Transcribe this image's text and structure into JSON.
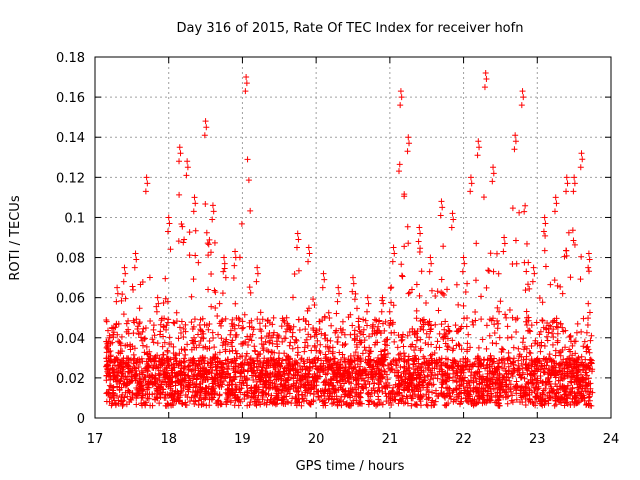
{
  "chart_data": {
    "type": "scatter",
    "title": "Day 316 of 2015, Rate Of TEC Index for receiver hofn",
    "xlabel": "GPS time / hours",
    "ylabel": "ROTI / TECUs",
    "xlim": [
      17,
      24
    ],
    "ylim": [
      0,
      0.18
    ],
    "xticks": [
      17,
      18,
      19,
      20,
      21,
      22,
      23,
      24
    ],
    "xtick_labels": [
      "17",
      "18",
      "19",
      "20",
      "21",
      "22",
      "23",
      "24"
    ],
    "yticks": [
      0,
      0.02,
      0.04,
      0.06,
      0.08,
      0.1,
      0.12,
      0.14,
      0.16,
      0.18
    ],
    "ytick_labels": [
      "0",
      "0.02",
      "0.04",
      "0.06",
      "0.08",
      "0.1",
      "0.12",
      "0.14",
      "0.16",
      "0.18"
    ],
    "grid": true,
    "marker": "+",
    "color": "#ff0000",
    "data_x_range": [
      17.15,
      23.75
    ],
    "series": [
      {
        "name": "ROTI",
        "x": [
          17.2,
          17.3,
          17.4,
          17.55,
          17.7,
          17.85,
          18.0,
          18.15,
          18.25,
          18.35,
          18.5,
          18.6,
          18.75,
          18.9,
          19.05,
          19.2,
          19.4,
          19.6,
          19.75,
          19.9,
          20.1,
          20.3,
          20.5,
          20.7,
          20.9,
          21.05,
          21.15,
          21.25,
          21.4,
          21.55,
          21.7,
          21.85,
          22.0,
          22.1,
          22.2,
          22.3,
          22.4,
          22.55,
          22.7,
          22.8,
          22.95,
          23.1,
          23.25,
          23.4,
          23.5,
          23.6,
          23.7
        ],
        "y": [
          0.04,
          0.065,
          0.075,
          0.082,
          0.12,
          0.06,
          0.1,
          0.135,
          0.128,
          0.11,
          0.148,
          0.106,
          0.08,
          0.083,
          0.17,
          0.075,
          0.04,
          0.05,
          0.092,
          0.085,
          0.072,
          0.065,
          0.07,
          0.06,
          0.06,
          0.085,
          0.163,
          0.14,
          0.095,
          0.08,
          0.108,
          0.102,
          0.08,
          0.12,
          0.138,
          0.172,
          0.125,
          0.09,
          0.141,
          0.163,
          0.075,
          0.1,
          0.11,
          0.12,
          0.12,
          0.132,
          0.082
        ]
      }
    ]
  }
}
